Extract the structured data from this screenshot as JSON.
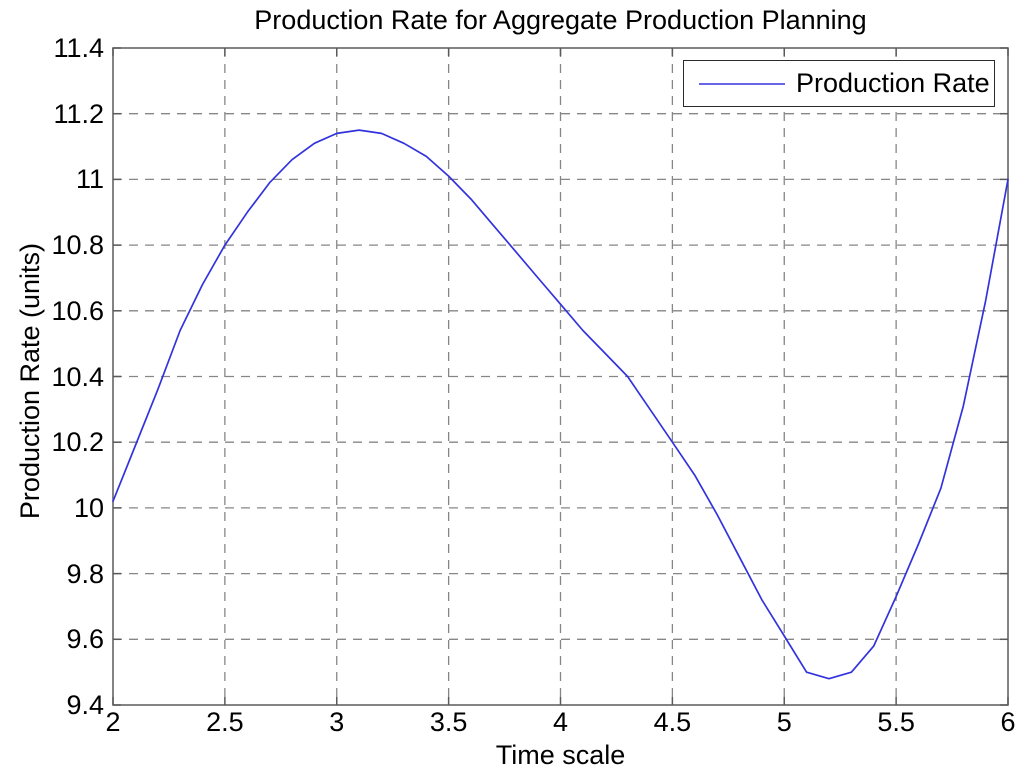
{
  "chart_data": {
    "type": "line",
    "title": "Production Rate for Aggregate Production Planning",
    "xlabel": "Time scale",
    "ylabel": "Production Rate (units)",
    "xlim": [
      2,
      6
    ],
    "ylim": [
      9.4,
      11.4
    ],
    "xticks": [
      2,
      2.5,
      3,
      3.5,
      4,
      4.5,
      5,
      5.5,
      6
    ],
    "xtick_labels": [
      "2",
      "2.5",
      "3",
      "3.5",
      "4",
      "4.5",
      "5",
      "5.5",
      "6"
    ],
    "yticks": [
      9.4,
      9.6,
      9.8,
      10,
      10.2,
      10.4,
      10.6,
      10.8,
      11,
      11.2,
      11.4
    ],
    "ytick_labels": [
      "9.4",
      "9.6",
      "9.8",
      "10",
      "10.2",
      "10.4",
      "10.6",
      "10.8",
      "11",
      "11.2",
      "11.4"
    ],
    "grid": true,
    "grid_style": "dashed",
    "legend": {
      "position": "top-right",
      "entries": [
        {
          "label": "Production Rate",
          "color": "#3333dd"
        }
      ]
    },
    "series": [
      {
        "name": "Production Rate",
        "color": "#3333dd",
        "x": [
          2.0,
          2.1,
          2.2,
          2.3,
          2.4,
          2.5,
          2.6,
          2.7,
          2.8,
          2.9,
          3.0,
          3.1,
          3.2,
          3.3,
          3.4,
          3.5,
          3.6,
          3.7,
          3.8,
          3.9,
          4.0,
          4.1,
          4.2,
          4.3,
          4.4,
          4.5,
          4.6,
          4.7,
          4.8,
          4.9,
          5.0,
          5.1,
          5.2,
          5.3,
          5.4,
          5.5,
          5.6,
          5.7,
          5.8,
          5.9,
          6.0
        ],
        "y": [
          10.02,
          10.19,
          10.36,
          10.54,
          10.68,
          10.8,
          10.9,
          10.99,
          11.06,
          11.11,
          11.14,
          11.15,
          11.14,
          11.11,
          11.07,
          11.01,
          10.94,
          10.86,
          10.78,
          10.7,
          10.62,
          10.54,
          10.47,
          10.4,
          10.3,
          10.2,
          10.1,
          9.98,
          9.85,
          9.72,
          9.61,
          9.5,
          9.48,
          9.5,
          9.58,
          9.73,
          9.89,
          10.06,
          10.31,
          10.63,
          11.0
        ]
      }
    ],
    "colors": {
      "background": "#ffffff",
      "axis_box": "#5a5a5a",
      "grid": "#868686",
      "text": "#000000",
      "line": "#3333dd"
    }
  }
}
